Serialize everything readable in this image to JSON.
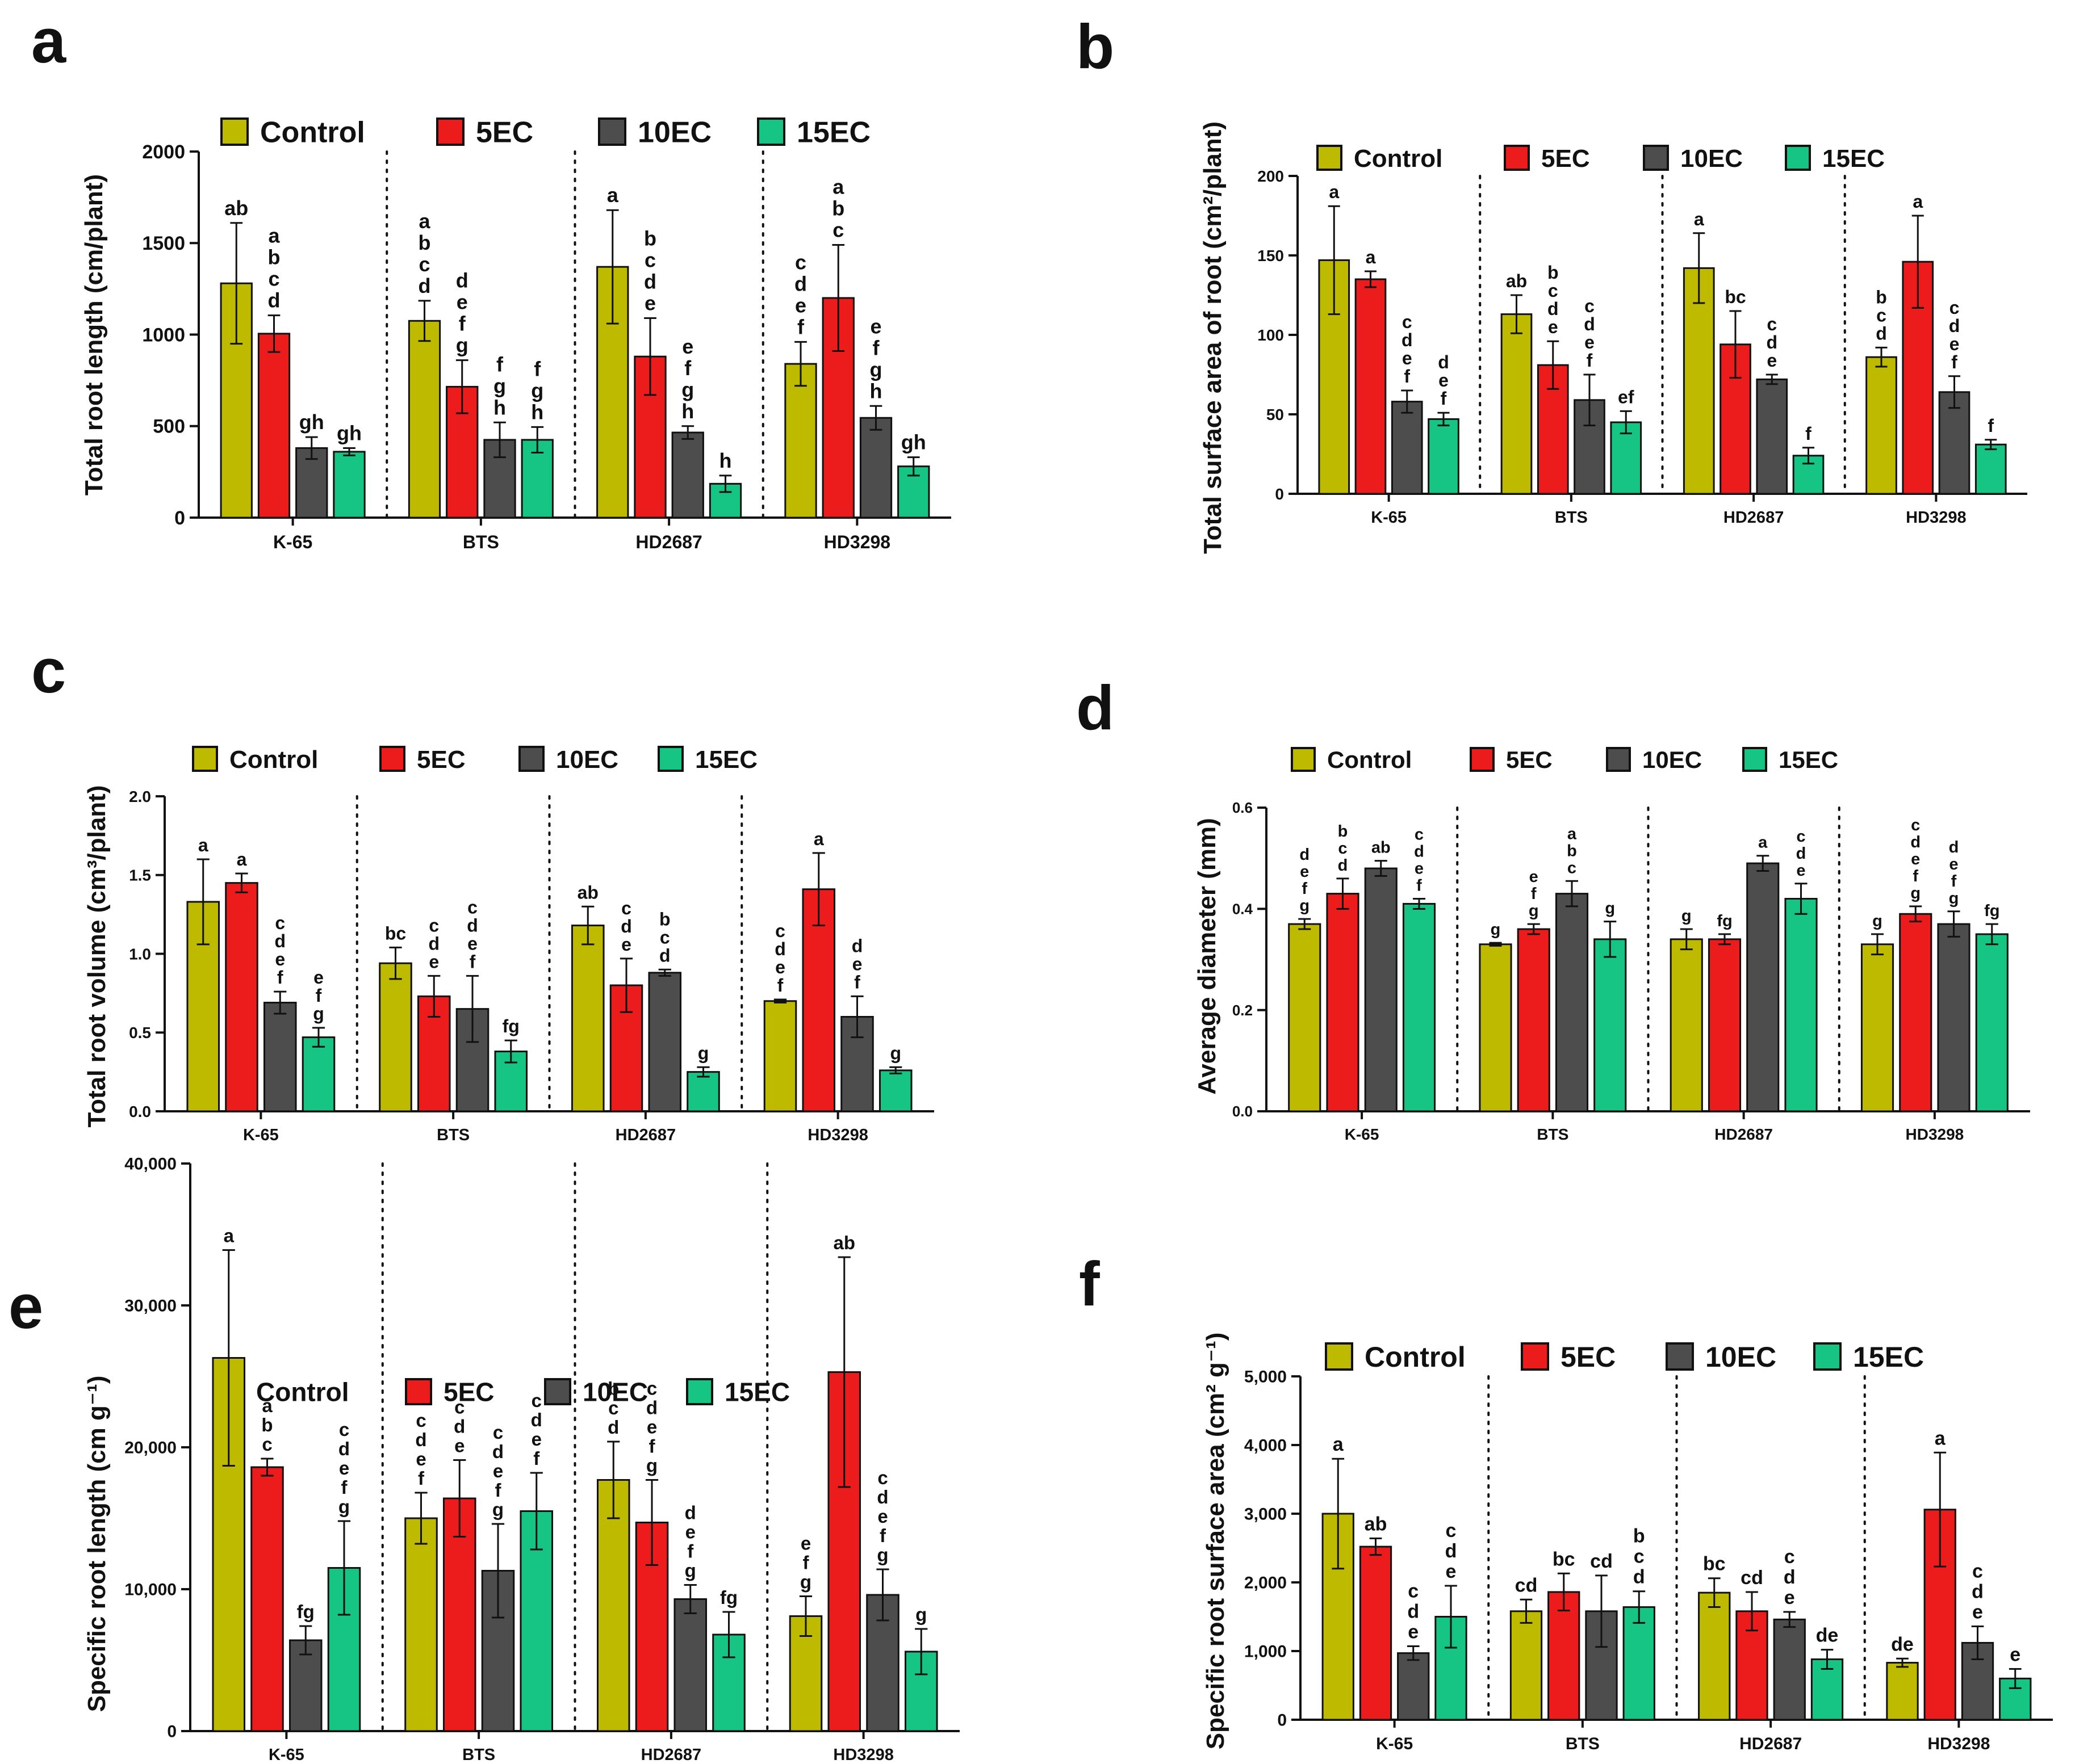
{
  "colors": {
    "Control": "#bdba00",
    "5EC": "#ec1c1c",
    "10EC": "#4d4d4d",
    "15EC": "#16c484",
    "axis": "#111111",
    "error": "#111111"
  },
  "chart_data": [
    {
      "panel": "a",
      "type": "bar",
      "ylabel": "Total root length (cm/plant)",
      "ylim": [
        0,
        2000
      ],
      "yticks": [
        "0",
        "500",
        "1000",
        "1500",
        "2000"
      ],
      "categories": [
        "K-65",
        "BTS",
        "HD2687",
        "HD3298"
      ],
      "legend": [
        "Control",
        "5EC",
        "10EC",
        "15EC"
      ],
      "series": [
        {
          "name": "Control",
          "values": [
            1280,
            1075,
            1370,
            840
          ],
          "errors": [
            330,
            110,
            310,
            120
          ],
          "letters": [
            "ab",
            "abcd",
            "a",
            "cdef"
          ]
        },
        {
          "name": "5EC",
          "values": [
            1005,
            715,
            880,
            1200
          ],
          "errors": [
            100,
            145,
            210,
            290
          ],
          "letters": [
            "abcd",
            "defg",
            "bcde",
            "abc"
          ]
        },
        {
          "name": "10EC",
          "values": [
            380,
            425,
            465,
            545
          ],
          "errors": [
            60,
            95,
            35,
            65
          ],
          "letters": [
            "gh",
            "fgh",
            "efgh",
            "efgh"
          ]
        },
        {
          "name": "15EC",
          "values": [
            360,
            425,
            185,
            280
          ],
          "errors": [
            20,
            70,
            45,
            50
          ],
          "letters": [
            "gh",
            "fgh",
            "h",
            "gh"
          ]
        }
      ]
    },
    {
      "panel": "b",
      "type": "bar",
      "ylabel": "Total surface area of root (cm²/plant)",
      "ylim": [
        0,
        200
      ],
      "yticks": [
        "0",
        "50",
        "100",
        "150",
        "200"
      ],
      "categories": [
        "K-65",
        "BTS",
        "HD2687",
        "HD3298"
      ],
      "legend": [
        "Control",
        "5EC",
        "10EC",
        "15EC"
      ],
      "series": [
        {
          "name": "Control",
          "values": [
            147,
            113,
            142,
            86
          ],
          "errors": [
            34,
            12,
            22,
            6
          ],
          "letters": [
            "a",
            "ab",
            "a",
            "bcd"
          ]
        },
        {
          "name": "5EC",
          "values": [
            135,
            81,
            94,
            146
          ],
          "errors": [
            5,
            15,
            21,
            29
          ],
          "letters": [
            "a",
            "bcde",
            "bc",
            "a"
          ]
        },
        {
          "name": "10EC",
          "values": [
            58,
            59,
            72,
            64
          ],
          "errors": [
            7,
            16,
            3,
            10
          ],
          "letters": [
            "cdef",
            "cdef",
            "cde",
            "cdef"
          ]
        },
        {
          "name": "15EC",
          "values": [
            47,
            45,
            24,
            31
          ],
          "errors": [
            4,
            7,
            5,
            3
          ],
          "letters": [
            "def",
            "ef",
            "f",
            "f"
          ]
        }
      ]
    },
    {
      "panel": "c",
      "type": "bar",
      "ylabel": "Total root volume (cm³/plant)",
      "ylim": [
        0,
        2.0
      ],
      "yticks": [
        "0.0",
        "0.5",
        "1.0",
        "1.5",
        "2.0"
      ],
      "categories": [
        "K-65",
        "BTS",
        "HD2687",
        "HD3298"
      ],
      "legend": [
        "Control",
        "5EC",
        "10EC",
        "15EC"
      ],
      "series": [
        {
          "name": "Control",
          "values": [
            1.33,
            0.94,
            1.18,
            0.7
          ],
          "errors": [
            0.27,
            0.1,
            0.12,
            0.01
          ],
          "letters": [
            "a",
            "bc",
            "ab",
            "cdef"
          ]
        },
        {
          "name": "5EC",
          "values": [
            1.45,
            0.73,
            0.8,
            1.41
          ],
          "errors": [
            0.06,
            0.13,
            0.17,
            0.23
          ],
          "letters": [
            "a",
            "cde",
            "cde",
            "a"
          ]
        },
        {
          "name": "10EC",
          "values": [
            0.69,
            0.65,
            0.88,
            0.6
          ],
          "errors": [
            0.07,
            0.21,
            0.02,
            0.13
          ],
          "letters": [
            "cdef",
            "cdef",
            "bcd",
            "def"
          ]
        },
        {
          "name": "15EC",
          "values": [
            0.47,
            0.38,
            0.25,
            0.26
          ],
          "errors": [
            0.06,
            0.07,
            0.03,
            0.02
          ],
          "letters": [
            "efg",
            "fg",
            "g",
            "g"
          ]
        }
      ]
    },
    {
      "panel": "d",
      "type": "bar",
      "ylabel": "Average diameter (mm)",
      "ylim": [
        0,
        0.6
      ],
      "yticks": [
        "0.0",
        "0.2",
        "0.4",
        "0.6"
      ],
      "categories": [
        "K-65",
        "BTS",
        "HD2687",
        "HD3298"
      ],
      "legend": [
        "Control",
        "5EC",
        "10EC",
        "15EC"
      ],
      "series": [
        {
          "name": "Control",
          "values": [
            0.37,
            0.33,
            0.34,
            0.33
          ],
          "errors": [
            0.01,
            0.003,
            0.02,
            0.02
          ],
          "letters": [
            "defg",
            "g",
            "g",
            "g"
          ]
        },
        {
          "name": "5EC",
          "values": [
            0.43,
            0.36,
            0.34,
            0.39
          ],
          "errors": [
            0.03,
            0.01,
            0.01,
            0.015
          ],
          "letters": [
            "bcd",
            "efg",
            "fg",
            "cdefg"
          ]
        },
        {
          "name": "10EC",
          "values": [
            0.48,
            0.43,
            0.49,
            0.37
          ],
          "errors": [
            0.015,
            0.025,
            0.015,
            0.025
          ],
          "letters": [
            "ab",
            "abc",
            "a",
            "defg"
          ]
        },
        {
          "name": "15EC",
          "values": [
            0.41,
            0.34,
            0.42,
            0.35
          ],
          "errors": [
            0.01,
            0.035,
            0.03,
            0.02
          ],
          "letters": [
            "cdef",
            "g",
            "cde",
            "fg"
          ]
        }
      ]
    },
    {
      "panel": "e",
      "type": "bar",
      "ylabel": "Specific root length (cm g⁻¹)",
      "ylim": [
        0,
        40000
      ],
      "yticks": [
        "0",
        "10,000",
        "20,000",
        "30,000",
        "40,000"
      ],
      "categories": [
        "K-65",
        "BTS",
        "HD2687",
        "HD3298"
      ],
      "legend": [
        "Control",
        "5EC",
        "10EC",
        "15EC"
      ],
      "series": [
        {
          "name": "Control",
          "values": [
            26300,
            15000,
            17700,
            8100
          ],
          "errors": [
            7600,
            1800,
            2700,
            1400
          ],
          "letters": [
            "a",
            "cdef",
            "bcd",
            "efg"
          ]
        },
        {
          "name": "5EC",
          "values": [
            18600,
            16400,
            14700,
            25300
          ],
          "errors": [
            600,
            2700,
            3000,
            8100
          ],
          "letters": [
            "abc",
            "cde",
            "cdefg",
            "ab"
          ]
        },
        {
          "name": "10EC",
          "values": [
            6400,
            11300,
            9300,
            9600
          ],
          "errors": [
            1000,
            3300,
            1000,
            1800
          ],
          "letters": [
            "fg",
            "cdefg",
            "defg",
            "cdefg"
          ]
        },
        {
          "name": "15EC",
          "values": [
            11500,
            15500,
            6800,
            5600
          ],
          "errors": [
            3300,
            2700,
            1600,
            1600
          ],
          "letters": [
            "cdefg",
            "cdef",
            "fg",
            "g"
          ]
        }
      ]
    },
    {
      "panel": "f",
      "type": "bar",
      "ylabel": "Specific root surface area (cm² g⁻¹)",
      "ylim": [
        0,
        5000
      ],
      "yticks": [
        "0",
        "1,000",
        "2,000",
        "3,000",
        "4,000",
        "5,000"
      ],
      "categories": [
        "K-65",
        "BTS",
        "HD2687",
        "HD3298"
      ],
      "legend": [
        "Control",
        "5EC",
        "10EC",
        "15EC"
      ],
      "series": [
        {
          "name": "Control",
          "values": [
            3000,
            1580,
            1850,
            830
          ],
          "errors": [
            800,
            170,
            210,
            60
          ],
          "letters": [
            "a",
            "cd",
            "bc",
            "de"
          ]
        },
        {
          "name": "5EC",
          "values": [
            2520,
            1860,
            1580,
            3060
          ],
          "errors": [
            120,
            270,
            280,
            830
          ],
          "letters": [
            "ab",
            "bc",
            "cd",
            "a"
          ]
        },
        {
          "name": "10EC",
          "values": [
            970,
            1580,
            1460,
            1120
          ],
          "errors": [
            100,
            520,
            110,
            240
          ],
          "letters": [
            "cde",
            "cd",
            "cde",
            "cde"
          ]
        },
        {
          "name": "15EC",
          "values": [
            1500,
            1640,
            880,
            600
          ],
          "errors": [
            450,
            230,
            140,
            140
          ],
          "letters": [
            "cde",
            "bcd",
            "de",
            "e"
          ]
        }
      ]
    }
  ]
}
